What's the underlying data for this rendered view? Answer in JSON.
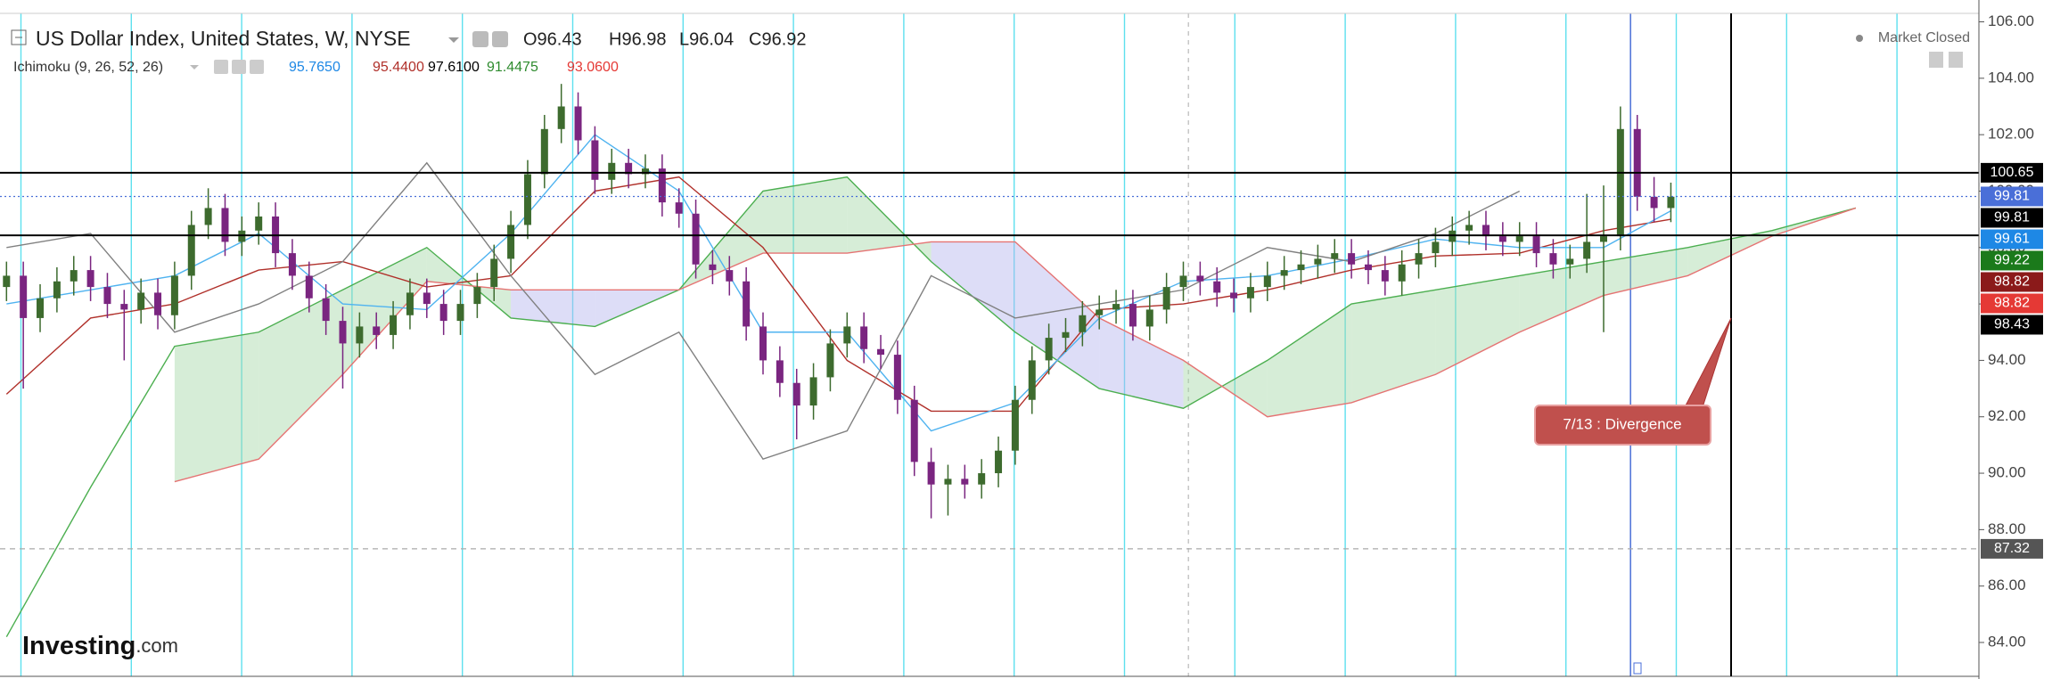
{
  "chart_data": {
    "type": "candlestick",
    "title": "US Dollar Index, United States, W, NYSE",
    "ohlc_text": [
      "O96.43",
      "H96.98",
      "L96.04",
      "C96.92"
    ],
    "indicator": {
      "name": "Ichimoku (9, 26, 52, 26)",
      "values": [
        {
          "text": "95.7650",
          "color": "#1e88e5"
        },
        {
          "text": "95.4400",
          "color": "#b0302a"
        },
        {
          "text": "97.6100",
          "color": "#000000"
        },
        {
          "text": "91.4475",
          "color": "#2e8b2e"
        },
        {
          "text": "93.0600",
          "color": "#e53935"
        }
      ]
    },
    "status": "Market Closed",
    "logo": "Investing",
    "logo_suffix": ".com",
    "annotation": "7/13 : Divergence",
    "ylim": [
      82.8,
      106.3
    ],
    "yticks": [
      {
        "value": 84,
        "label": "84.00"
      },
      {
        "value": 86,
        "label": "86.00"
      },
      {
        "value": 88,
        "label": "88.00"
      },
      {
        "value": 90,
        "label": "90.00"
      },
      {
        "value": 92,
        "label": "92.00"
      },
      {
        "value": 94,
        "label": "94.00"
      },
      {
        "value": 96,
        "label": "96.00"
      },
      {
        "value": 98,
        "label": "98.00"
      },
      {
        "value": 100,
        "label": "100.00"
      },
      {
        "value": 102,
        "label": "102.00"
      },
      {
        "value": 104,
        "label": "104.00"
      },
      {
        "value": 106,
        "label": "106.00"
      }
    ],
    "up_color": "#3d6b2e",
    "down_color": "#7a2580",
    "open": [
      96.6,
      97.0,
      95.5,
      96.2,
      96.8,
      97.2,
      96.6,
      96.0,
      95.8,
      96.4,
      95.6,
      97.0,
      98.8,
      99.4,
      98.2,
      98.6,
      99.1,
      97.8,
      97.0,
      96.2,
      95.4,
      94.6,
      95.2,
      94.9,
      95.6,
      96.4,
      96.0,
      95.4,
      96.0,
      96.6,
      97.6,
      98.8,
      100.6,
      102.2,
      103.0,
      101.8,
      100.4,
      101.0,
      100.6,
      100.8,
      99.6,
      99.2,
      97.4,
      97.2,
      96.8,
      95.2,
      94.0,
      93.2,
      92.4,
      93.4,
      94.6,
      95.2,
      94.4,
      94.2,
      92.6,
      90.4,
      89.6,
      89.8,
      89.6,
      90.0,
      90.8,
      92.6,
      94.0,
      94.8,
      95.0,
      95.6,
      95.8,
      96.0,
      95.2,
      95.8,
      96.6,
      97.0,
      96.8,
      96.4,
      96.2,
      96.6,
      97.0,
      97.2,
      97.4,
      97.6,
      97.8,
      97.4,
      97.2,
      96.8,
      97.4,
      97.8,
      98.2,
      98.6,
      98.8,
      98.4,
      98.2,
      98.4,
      97.8,
      97.4,
      97.6,
      98.2,
      98.4,
      102.2,
      99.8,
      99.4
    ],
    "high": [
      97.5,
      97.5,
      96.7,
      97.3,
      97.7,
      97.7,
      97.1,
      96.5,
      96.9,
      96.9,
      97.5,
      99.3,
      100.1,
      99.9,
      99.1,
      99.6,
      99.6,
      98.3,
      97.5,
      96.7,
      95.9,
      95.7,
      95.7,
      96.1,
      96.9,
      96.9,
      96.5,
      96.5,
      97.1,
      98.1,
      99.3,
      101.1,
      102.7,
      103.8,
      103.5,
      102.3,
      101.5,
      101.5,
      101.3,
      101.3,
      100.1,
      99.7,
      97.9,
      97.7,
      97.3,
      95.7,
      94.5,
      93.7,
      93.9,
      95.1,
      95.7,
      95.7,
      94.9,
      94.7,
      93.1,
      90.9,
      90.3,
      90.3,
      90.5,
      91.3,
      93.1,
      94.5,
      95.3,
      95.5,
      96.1,
      96.3,
      96.5,
      96.5,
      96.3,
      97.1,
      97.5,
      97.5,
      97.3,
      96.9,
      97.1,
      97.5,
      97.7,
      97.9,
      98.1,
      98.3,
      98.3,
      97.9,
      97.7,
      97.9,
      98.3,
      98.7,
      99.1,
      99.3,
      99.3,
      98.9,
      98.9,
      98.9,
      98.3,
      98.1,
      99.9,
      100.2,
      103.0,
      102.7,
      100.5,
      100.3
    ],
    "low": [
      96.1,
      93.0,
      95.0,
      95.7,
      96.3,
      96.1,
      95.5,
      94.0,
      95.3,
      95.1,
      95.1,
      96.5,
      98.3,
      97.7,
      97.7,
      98.1,
      97.3,
      96.5,
      95.7,
      94.9,
      93.0,
      94.1,
      94.4,
      94.4,
      95.1,
      95.5,
      94.9,
      94.9,
      95.5,
      96.1,
      97.1,
      98.3,
      100.1,
      101.7,
      101.3,
      99.9,
      99.9,
      100.1,
      100.1,
      99.1,
      98.7,
      96.9,
      96.7,
      96.3,
      94.7,
      93.5,
      92.7,
      91.2,
      91.9,
      92.9,
      94.1,
      93.9,
      93.7,
      92.1,
      89.9,
      88.4,
      88.5,
      89.1,
      89.1,
      89.5,
      90.3,
      92.1,
      93.5,
      94.3,
      94.5,
      95.1,
      95.3,
      94.7,
      94.7,
      95.3,
      96.1,
      96.3,
      95.9,
      95.7,
      95.7,
      96.1,
      96.5,
      96.7,
      96.9,
      97.1,
      96.9,
      96.7,
      96.3,
      96.3,
      96.9,
      97.3,
      97.7,
      98.1,
      97.9,
      97.7,
      97.7,
      97.3,
      96.9,
      96.9,
      97.1,
      95.0,
      97.9,
      99.3,
      98.9,
      98.9
    ],
    "close": [
      97.0,
      95.5,
      96.2,
      96.8,
      97.2,
      96.6,
      96.0,
      95.8,
      96.4,
      95.6,
      97.0,
      98.8,
      99.4,
      98.2,
      98.6,
      99.1,
      97.8,
      97.0,
      96.2,
      95.4,
      94.6,
      95.2,
      94.9,
      95.6,
      96.4,
      96.0,
      95.4,
      96.0,
      96.6,
      97.6,
      98.8,
      100.6,
      102.2,
      103.0,
      101.8,
      100.4,
      101.0,
      100.6,
      100.8,
      99.6,
      99.2,
      97.4,
      97.2,
      96.8,
      95.2,
      94.0,
      93.2,
      92.4,
      93.4,
      94.6,
      95.2,
      94.4,
      94.2,
      92.6,
      90.4,
      89.6,
      89.8,
      89.6,
      90.0,
      90.8,
      92.6,
      94.0,
      94.8,
      95.0,
      95.6,
      95.8,
      96.0,
      95.2,
      95.8,
      96.6,
      97.0,
      96.8,
      96.4,
      96.2,
      96.6,
      97.0,
      97.2,
      97.4,
      97.6,
      97.8,
      97.4,
      97.2,
      96.8,
      97.4,
      97.8,
      98.2,
      98.6,
      98.8,
      98.4,
      98.2,
      98.4,
      97.8,
      97.4,
      97.6,
      98.2,
      98.4,
      102.2,
      99.8,
      99.4,
      99.8
    ],
    "cloud": {
      "x": [
        0,
        5,
        10,
        15,
        20,
        25,
        30,
        35,
        40,
        45,
        50,
        55,
        60,
        65,
        70,
        75,
        80,
        85,
        90,
        95,
        100,
        105,
        110
      ],
      "span_a": {
        "color": "#4caf50",
        "values": [
          84.2,
          89.5,
          94.5,
          95.0,
          96.5,
          98.0,
          95.5,
          95.2,
          96.5,
          100.0,
          100.5,
          97.5,
          95.0,
          93.0,
          92.3,
          94.0,
          96.0,
          96.5,
          97.0,
          97.5,
          98.0,
          98.6,
          99.4
        ]
      },
      "span_b": {
        "color": "#e57373",
        "values": [
          null,
          null,
          89.7,
          90.5,
          93.5,
          96.8,
          96.5,
          96.5,
          96.5,
          97.8,
          97.8,
          98.2,
          98.2,
          95.5,
          94.0,
          92.0,
          92.5,
          93.5,
          95.0,
          96.3,
          97.0,
          98.4,
          99.4
        ]
      },
      "fill_up": "#a5d6a7",
      "fill_down": "#b3b3ee"
    },
    "lines": [
      {
        "color": "#b0302a",
        "x": [
          0,
          5,
          10,
          15,
          20,
          25,
          30,
          35,
          40,
          45,
          50,
          55,
          60,
          65,
          70,
          75,
          80,
          85,
          90,
          95,
          99
        ],
        "values": [
          92.8,
          95.5,
          96.0,
          97.2,
          97.5,
          96.6,
          97.0,
          100.0,
          100.5,
          98.0,
          94.0,
          92.2,
          92.2,
          95.8,
          96.0,
          96.5,
          97.2,
          97.7,
          97.8,
          98.6,
          99.0
        ]
      },
      {
        "color": "#4fb3f0",
        "x": [
          0,
          5,
          10,
          15,
          20,
          25,
          30,
          35,
          40,
          45,
          50,
          55,
          60,
          65,
          70,
          75,
          80,
          85,
          90,
          95,
          99
        ],
        "values": [
          96.0,
          96.5,
          97.0,
          98.5,
          96.0,
          95.8,
          98.5,
          102.0,
          100.0,
          95.0,
          95.0,
          91.5,
          92.5,
          95.5,
          96.8,
          97.0,
          97.6,
          98.3,
          98.0,
          98.0,
          99.3
        ]
      },
      {
        "color": "#808080",
        "x": [
          0,
          5,
          10,
          15,
          20,
          25,
          30,
          35,
          40,
          45,
          50,
          55,
          60,
          65,
          70,
          75,
          80,
          85,
          90
        ],
        "values": [
          98.0,
          98.5,
          95.0,
          96.0,
          97.5,
          101.0,
          97.0,
          93.5,
          95.0,
          90.5,
          91.5,
          97.0,
          95.5,
          96.0,
          96.5,
          98.0,
          97.5,
          98.5,
          100.0
        ]
      }
    ],
    "price_tags": [
      {
        "value": 100.65,
        "color": "#000000",
        "line": "solid"
      },
      {
        "value": 99.81,
        "color": "#4a6fd8",
        "line": "dotted"
      },
      {
        "value": 99.81,
        "color": "#000000"
      },
      {
        "value": 99.61,
        "color": "#1e88e5"
      },
      {
        "value": 99.22,
        "color": "#1b7a1b"
      },
      {
        "value": 98.82,
        "color": "#8b1a1a"
      },
      {
        "value": 98.82,
        "color": "#e53935"
      },
      {
        "value": 98.43,
        "color": "#000000",
        "line": "solid"
      },
      {
        "value": 87.32,
        "color": "#555555",
        "line": "dashed"
      }
    ]
  }
}
